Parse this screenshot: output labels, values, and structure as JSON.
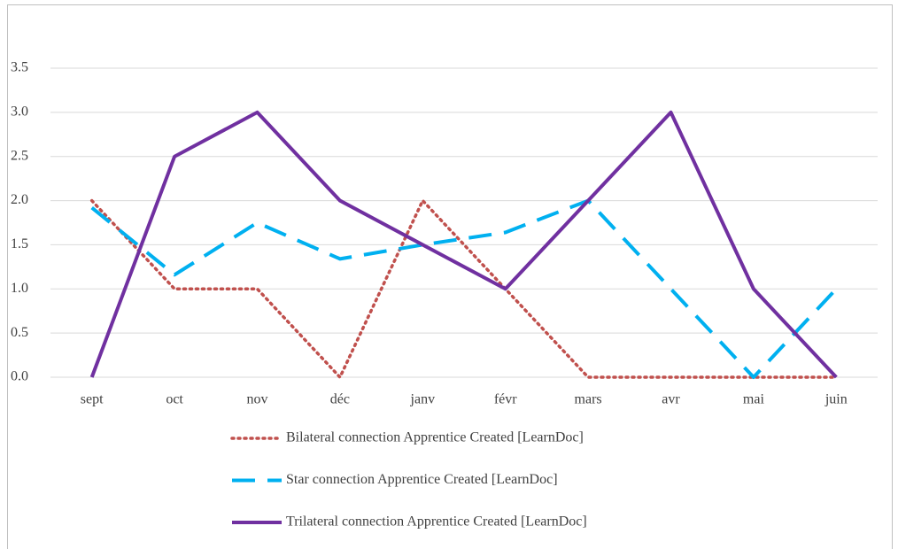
{
  "chart_data": {
    "type": "line",
    "categories": [
      "sept",
      "oct",
      "nov",
      "déc",
      "janv",
      "févr",
      "mars",
      "avr",
      "mai",
      "juin"
    ],
    "series": [
      {
        "name": "Bilateral connection Apprentice Created [LearnDoc]",
        "color": "#c0504d",
        "dash": "dot",
        "values": [
          2,
          1,
          1,
          0,
          2,
          1,
          0,
          0,
          0,
          0
        ]
      },
      {
        "name": "Star connection Apprentice Created [LearnDoc]",
        "color": "#00b0f0",
        "dash": "dash",
        "values": [
          1.92,
          1.16,
          1.75,
          1.34,
          1.5,
          1.64,
          2,
          1,
          0,
          1
        ]
      },
      {
        "name": "Trilateral connection Apprentice Created [LearnDoc]",
        "color": "#7030a0",
        "dash": "solid",
        "values": [
          0,
          2.5,
          3,
          2,
          1.5,
          1,
          2,
          3,
          1,
          0
        ]
      }
    ],
    "ylim": [
      0,
      3.5
    ],
    "yticks": [
      {
        "value": 0,
        "label": "0.0"
      },
      0.5,
      {
        "value": 1,
        "label": "1.0"
      },
      1.5,
      {
        "value": 2,
        "label": "2.0"
      },
      2.5,
      {
        "value": 3,
        "label": "3.0"
      },
      3.5
    ],
    "grid": true,
    "legend": "bottom"
  }
}
